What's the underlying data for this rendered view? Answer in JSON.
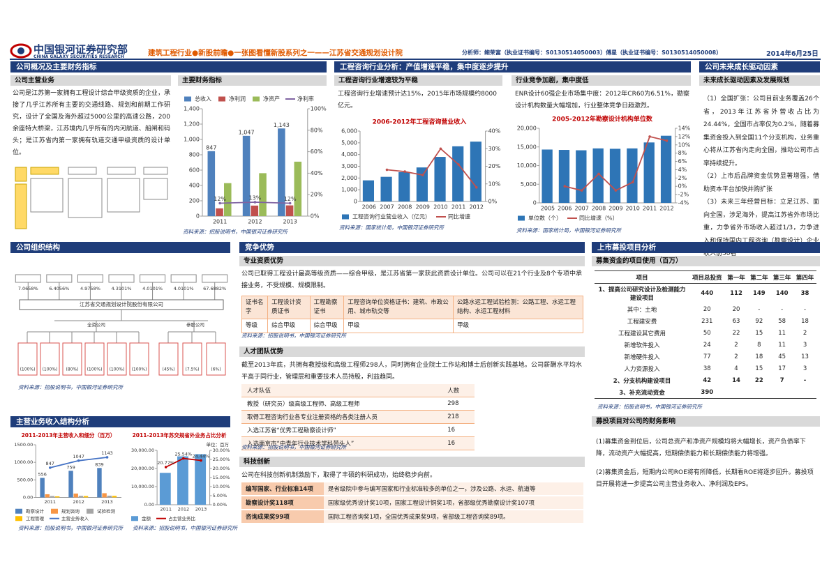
{
  "header": {
    "logo_cn": "中国银河证券研究部",
    "logo_en": "CHINA GALAXY SECURITIES RESEARCH",
    "title": "建筑工程行业●新股前瞻●一张图看懂新股系列之一——江苏省交通规划设计院",
    "analysts": "分析师：鲍荣富（执业证书编号：S0130514050003）傅星（执业证书编号：S0130514050008）",
    "date": "2014年6月25日"
  },
  "overview": {
    "heading": "公司概况及主要财务指标",
    "business_heading": "公司主营业务",
    "business_text": "公司是江苏第一家拥有工程设计综合甲级资质的企业，承接了几乎江苏所有主要的交通线路、规划和前期工作研究，设计了全国及海外超过5000公里的高速公路，200余座特大桥梁，江苏境内几乎所有的内河航道、船闸和码头；是江苏省内第一家拥有轨道交通甲级资质的设计单位。",
    "finance_heading": "主要财务指标",
    "finance_source": "资料来源：招股说明书，中国银河证券研究所"
  },
  "industry": {
    "heading": "工程咨询行业分析：产值增速平稳，集中度逐步提升",
    "growth_heading": "工程咨询行业增速较为平稳",
    "growth_text": "工程咨询行业增速预计达15%，2015年市场规模约8000亿元。",
    "growth_source": "资料来源：国家统计局，中国银河证券研究所",
    "competition_heading": "行业竞争加剧，集中度低",
    "competition_text": "ENR设计60强企业市场集中度：2012年CR60为6.51%，勘察设计机构数量大幅增加，行业整体竞争日趋激烈。",
    "competition_source": "资料来源：国家统计局，中国银河证券研究所"
  },
  "future": {
    "heading": "公司未来成长驱动因素",
    "subheading": "未来成长驱动因素及发展规划",
    "paragraphs": [
      "（1）全国扩张：公司目前业务覆盖26个省，2013年江苏省外营收占比为24.44%，全国市占率仅为0.2%，随着募集资金投入到全国11个分支机构，业务重心将从江苏省内走向全国，推动公司市占率持续提升。",
      "（2）上市后品牌资金优势显著增强，借助资本平台加快并购扩张",
      "（3）未来三年经营目标：立足江苏、面向全国，涉足海外，提高江苏省外市场比重，力争省外市场收入超过1/3，力争进入和保持国内工程咨询（勘察设计）企业收入前50名"
    ]
  },
  "org": {
    "heading": "公司组织结构",
    "shareholder_stakes": [
      "7.0658%",
      "6.4056%",
      "4.9758%",
      "4.3101%",
      "4.0101%",
      "4.0101%",
      "67.6882%"
    ],
    "parent": "江苏省交通规划设计院股份有限公司",
    "wholly_owned_label": "全资公司",
    "associate_label": "参股公司",
    "subsidiary_stakes": [
      "(100%)",
      "(100%)",
      "(80%)",
      "(100%)",
      "(100%)",
      "(100%)",
      "(45%)",
      "(7.5%)",
      "(6%)"
    ],
    "source": "资料来源：招股说明书，中国银河证券研究所"
  },
  "advantages": {
    "heading": "竞争优势",
    "qualification": {
      "heading": "专业资质优势",
      "text": "公司已取得工程设计最高等级资质——综合甲级，是江苏省第一家获此资质设计单位。公司可以在21个行业及8个专项中承接业务，不受规模、规模限制。",
      "rows": [
        [
          "证书名字",
          "工程设计资质证书",
          "工程勘察证书",
          "工程咨询单位资格证书：建筑、市政公用、城市轨交等",
          "公路水运工程试验检测：公路工程、水运工程结构、水运工程材料"
        ],
        [
          "等级",
          "综合甲级",
          "综合甲级",
          "甲级",
          "甲级"
        ]
      ],
      "source": "资料来源：招股说明书，中国银河证券研究所"
    },
    "talent": {
      "heading": "人才团队优势",
      "text": "截至2013年底，共拥有教授级和高级工程师298人，同时拥有企业院士工作站和博士后创新实践基地。公司薪酬水平均水平高于同行业，管理层和重要技术人员持股，利益趋同。",
      "rows": [
        [
          "人才队伍",
          "人数"
        ],
        [
          "教授（研究员）级高级工程师、高级工程师",
          "298"
        ],
        [
          "取得工程咨询行业各专业注册资格的各类注册人员",
          "218"
        ],
        [
          "入选江苏省“优秀工程勘察设计师”",
          "16"
        ],
        [
          "入选南京市“中青年行业技术学科带头人”",
          "16"
        ]
      ],
      "source": "资料来源：招股说明书，中国银河证券研究所"
    },
    "tech": {
      "heading": "科技创新",
      "text": "公司在科技创新机制激励下，取得了丰硕的科研成功，始终稳步向前。",
      "rows": [
        [
          "编写国家、行业标准14项",
          "是省级院中参与编写国家和行业标准较多的单位之一，涉及公路、水运、航道等"
        ],
        [
          "勘察设计奖118项",
          "国家级优秀设计奖10项，国家工程设计铜奖1项，省部级优秀勘察设计奖107项"
        ],
        [
          "咨询成果奖99项",
          "国际工程咨询奖1项，全国优秀成果奖9项，省部级工程咨询奖89项。"
        ]
      ]
    }
  },
  "ipo": {
    "heading": "上市募投项目分析",
    "table_heading": "募集资金的项目使用（百万）",
    "rows": [
      [
        "项目",
        "项目总投资",
        "第一年",
        "第二年",
        "第三年",
        "第四年"
      ],
      [
        "1、提高公司研究设计及检测能力建设项目",
        "440",
        "112",
        "149",
        "140",
        "38"
      ],
      [
        "其中：土地",
        "20",
        "20",
        "-",
        "-",
        "-"
      ],
      [
        "工程建安费",
        "231",
        "63",
        "92",
        "58",
        "18"
      ],
      [
        "工程建设其它费用",
        "50",
        "22",
        "15",
        "11",
        "2"
      ],
      [
        "新增软件投入",
        "24",
        "2",
        "8",
        "11",
        "3"
      ],
      [
        "新增硬件投入",
        "77",
        "2",
        "18",
        "45",
        "13"
      ],
      [
        "人力资源投入",
        "38",
        "4",
        "15",
        "17",
        "3"
      ],
      [
        "2、分支机构建设项目",
        "42",
        "14",
        "22",
        "7",
        "-"
      ],
      [
        "3、补充流动资金",
        "390"
      ]
    ],
    "source": "资料来源：招股说明书，中国银河证券研究所",
    "impact_heading": "募投项目对公司的财务影响",
    "impact": [
      "(1)募集资金到位后，公司总资产和净资产规模均将大幅增长，资产负债率下降，流动资产大幅提高，短期偿债能力和长期偿债能力将增强。",
      "(2)募集资金后，短期内公司ROE将有所降低，长期看ROE将逐步回升。募投项目开展将进一步提高公司主营业务收入、净利润及EPS。"
    ]
  },
  "revenue": {
    "heading": "主营业务收入结构分析",
    "sources": [
      "资料来源：招股说明书，中国银河证券研究所",
      "资料来源：招股说明书，中国银河证券研究所"
    ]
  },
  "chart_data": [
    {
      "type": "bar",
      "legend": "top",
      "categories": [
        "2011",
        "2012",
        "2013"
      ],
      "series": [
        {
          "name": "总收入",
          "color": "#4f81bd",
          "values": [
            847,
            1047,
            1143
          ],
          "value_labels": [
            "847",
            "1,047",
            "1,143"
          ]
        },
        {
          "name": "净利润",
          "color": "#c0504d",
          "values": [
            101,
            137,
            140
          ]
        },
        {
          "name": "净资产",
          "color": "#9bbb59",
          "values": [
            430,
            560,
            710
          ]
        },
        {
          "name": "净利率",
          "color": "#8064a2",
          "type": "line",
          "axis": "y2",
          "values": [
            12,
            13,
            12
          ],
          "value_labels": [
            "12%",
            "13%",
            "12%"
          ]
        }
      ],
      "ylim": [
        0,
        1400
      ],
      "yticks": [
        0,
        200,
        400,
        600,
        800,
        {
          "value": 1000,
          "label": "1,000"
        },
        {
          "value": 1200,
          "label": "1,200"
        },
        {
          "value": 1400,
          "label": "1,400"
        }
      ],
      "y2lim": [
        0,
        100
      ],
      "y2ticks": [
        {
          "value": 0,
          "label": "0%"
        },
        {
          "value": 20,
          "label": "20%"
        },
        {
          "value": 40,
          "label": "40%"
        },
        {
          "value": 60,
          "label": "60%"
        },
        {
          "value": 80,
          "label": "80%"
        },
        {
          "value": 100,
          "label": "100%"
        }
      ]
    },
    {
      "type": "bar",
      "legend": "bottom",
      "title": "2006-2012年工程咨询营业收入",
      "categories": [
        "2006",
        "2007",
        "2008",
        "2009",
        "2010",
        "2011",
        "2012"
      ],
      "series": [
        {
          "name": "工程咨询行业营业收入（亿元）",
          "color": "#2e75b6",
          "values": [
            1800,
            2100,
            2500,
            2900,
            3800,
            4700,
            5100
          ]
        },
        {
          "name": "同比增速",
          "color": "#c0504d",
          "type": "line",
          "axis": "y2",
          "values": [
            null,
            18,
            17,
            15,
            30,
            21,
            8
          ]
        }
      ],
      "ylim": [
        0,
        6000
      ],
      "yticks": [
        0,
        {
          "value": 1000,
          "label": "1,000"
        },
        {
          "value": 2000,
          "label": "2,000"
        },
        {
          "value": 3000,
          "label": "3,000"
        },
        {
          "value": 4000,
          "label": "4,000"
        },
        {
          "value": 5000,
          "label": "5,000"
        },
        {
          "value": 6000,
          "label": "6,000"
        }
      ],
      "y2lim": [
        0,
        40
      ],
      "y2ticks": [
        {
          "value": 0,
          "label": "0%"
        },
        {
          "value": 10,
          "label": "10%"
        },
        {
          "value": 20,
          "label": "20%"
        },
        {
          "value": 30,
          "label": "30%"
        },
        {
          "value": 40,
          "label": "40%"
        }
      ]
    },
    {
      "type": "bar",
      "legend": "bottom",
      "title": "2005-2012年勘察设计机构单位数",
      "categories": [
        "2005",
        "2006",
        "2007",
        "2008",
        "2009",
        "2010",
        "2011",
        "2012"
      ],
      "series": [
        {
          "name": "单位数（个）",
          "color": "#2e75b6",
          "values": [
            14300,
            14200,
            14100,
            14600,
            14500,
            14600,
            16200,
            18000
          ]
        },
        {
          "name": "同比增速（%）",
          "color": "#c0504d",
          "type": "line",
          "axis": "y2",
          "values": [
            null,
            0,
            -1,
            3,
            -1,
            1,
            12,
            11
          ]
        }
      ],
      "ylim": [
        0,
        20000
      ],
      "yticks": [
        0,
        {
          "value": 5000,
          "label": "5,000"
        },
        {
          "value": 10000,
          "label": "10,000"
        },
        {
          "value": 15000,
          "label": "15,000"
        },
        {
          "value": 20000,
          "label": "20,000"
        }
      ],
      "y2lim": [
        -4,
        14
      ],
      "y2ticks": [
        {
          "value": -4,
          "label": "-4%"
        },
        {
          "value": -2,
          "label": "-2%"
        },
        {
          "value": 0,
          "label": "0%"
        },
        {
          "value": 2,
          "label": "2%"
        },
        {
          "value": 4,
          "label": "4%"
        },
        {
          "value": 6,
          "label": "6%"
        },
        {
          "value": 8,
          "label": "8%"
        },
        {
          "value": 10,
          "label": "10%"
        },
        {
          "value": 12,
          "label": "12%"
        },
        {
          "value": 14,
          "label": "14%"
        }
      ]
    },
    {
      "type": "bar",
      "legend": "bottom",
      "title": "2011-2013年主营收入和细分（百万）",
      "categories": [
        "2011",
        "2012",
        "2013"
      ],
      "series": [
        {
          "name": "勘察设计",
          "color": "#4f81bd",
          "values": [
            556,
            759,
            839
          ],
          "value_labels": [
            "556",
            "759",
            "839"
          ]
        },
        {
          "name": "规划咨询",
          "color": "#f79646",
          "values": [
            90,
            110,
            120
          ]
        },
        {
          "name": "试验检测",
          "color": "#a5a5a5",
          "values": [
            40,
            45,
            50
          ]
        },
        {
          "name": "工程管理",
          "color": "#ffc000",
          "values": [
            30,
            40,
            45
          ]
        },
        {
          "name": "主营业务收入",
          "color": "#4472c4",
          "type": "line",
          "values": [
            847,
            1047,
            1143
          ],
          "value_labels": [
            "847",
            "1047",
            "1143"
          ]
        }
      ],
      "ylim": [
        0,
        1500
      ],
      "yticks": [
        {
          "value": 0,
          "label": "0.00"
        },
        {
          "value": 500,
          "label": "500.00"
        },
        {
          "value": 1000,
          "label": "1000.00"
        },
        {
          "value": 1500,
          "label": "1500.00"
        }
      ]
    },
    {
      "type": "bar",
      "legend": "bottom",
      "title": "2011-2013年苏交规省外业务占比分析",
      "unit": "单位：百万",
      "categories": [
        "2011",
        "2012",
        "2013"
      ],
      "series": [
        {
          "name": "金额",
          "color": "#5b9bd5",
          "values": [
            17600,
            26700,
            27900
          ]
        },
        {
          "name": "占主营业务比",
          "color": "#c00000",
          "type": "line",
          "axis": "y2",
          "values": [
            20.77,
            25.54,
            24.44
          ],
          "value_labels": [
            "20.77%",
            "25.54%",
            "24.44%"
          ]
        }
      ],
      "ylim": [
        0,
        30000
      ],
      "yticks": [
        {
          "value": 0,
          "label": "0.00"
        },
        {
          "value": 10000,
          "label": "10,000.00"
        },
        {
          "value": 20000,
          "label": "20,000.00"
        },
        {
          "value": 30000,
          "label": "30,000.00"
        }
      ],
      "y2lim": [
        0,
        30
      ],
      "y2ticks": [
        {
          "value": 0,
          "label": "0.00%"
        },
        {
          "value": 5,
          "label": "5.00%"
        },
        {
          "value": 10,
          "label": "10.00%"
        },
        {
          "value": 15,
          "label": "15.00%"
        },
        {
          "value": 20,
          "label": "20.00%"
        },
        {
          "value": 25,
          "label": "25.00%"
        },
        {
          "value": 30,
          "label": "30.00%"
        }
      ]
    }
  ]
}
